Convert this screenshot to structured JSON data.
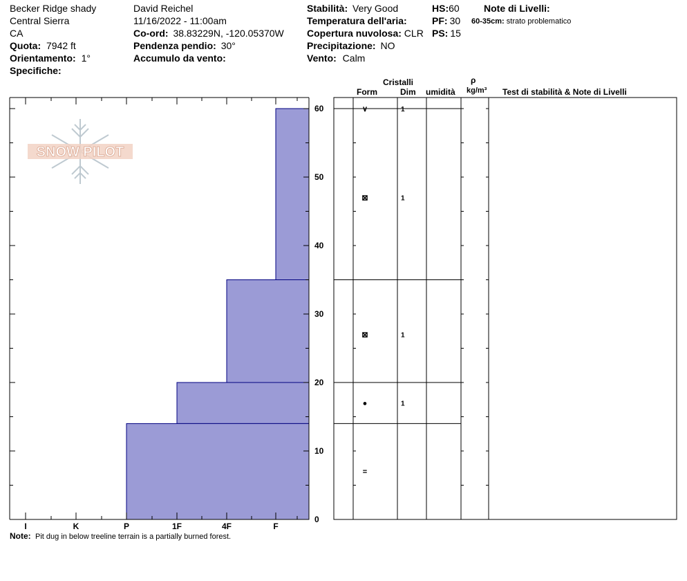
{
  "header": {
    "location": "Becker Ridge shady",
    "range": "Central Sierra",
    "state": "CA",
    "elevation_label": "Quota:",
    "elevation_value": "7942 ft",
    "aspect_label": "Orientamento:",
    "aspect_value": "1°",
    "specifics_label": "Specifiche:",
    "observer": "David Reichel",
    "datetime": "11/16/2022 - 11:00am",
    "coord_label": "Co-ord:",
    "coord_value": "38.83229N, -120.05370W",
    "slope_label": "Pendenza pendio:",
    "slope_value": "30°",
    "wind_load_label": "Accumulo da vento:",
    "stability_label": "Stabilità:",
    "stability_value": "Very Good",
    "air_temp_label": "Temperatura dell'aria:",
    "cloud_label": "Copertura nuvolosa:",
    "cloud_value": "CLR",
    "precip_label": "Precipitazione:",
    "precip_value": "NO",
    "wind_label": "Vento:",
    "wind_value": "Calm",
    "hs_label": "HS:",
    "hs_value": "60",
    "pf_label": "PF:",
    "pf_value": "30",
    "ps_label": "PS:",
    "ps_value": "15",
    "layer_notes_label": "Note di Livelli:",
    "layer_note_range": "60-35cm:",
    "layer_note_text": "strato problematico"
  },
  "logo_text": "SNOW PILOT",
  "table_headers": {
    "crystals": "Cristalli",
    "form": "Form",
    "size": "Dim",
    "moisture": "umidità",
    "density_symbol": "ρ",
    "density_unit": "kg/m³",
    "tests": "Test di stabilità & Note di Livelli"
  },
  "note_label": "Note:",
  "note_text": "Pit dug in below treeline terrain is a partially burned forest.",
  "chart_data": {
    "type": "bar",
    "orientation": "horizontal-step",
    "title": "",
    "xlabel": "",
    "ylabel": "",
    "x_categories": [
      "I",
      "K",
      "P",
      "1F",
      "4F",
      "F"
    ],
    "y_ticks": [
      0,
      10,
      20,
      30,
      40,
      50,
      60
    ],
    "ylim": [
      0,
      62
    ],
    "layers": [
      {
        "top": 60,
        "bottom": 35,
        "hardness": "F",
        "form": "∨",
        "size": "1"
      },
      {
        "top": 35,
        "bottom": 20,
        "hardness": "4F",
        "form": "⊠",
        "size": "1"
      },
      {
        "top": 20,
        "bottom": 14,
        "hardness": "1F",
        "form": "●",
        "size": "1"
      },
      {
        "top": 14,
        "bottom": 0,
        "hardness": "P",
        "form": "=",
        "size": ""
      }
    ],
    "crystal_rows": [
      {
        "height": 60,
        "form": "∨",
        "size": "1"
      },
      {
        "height": 47,
        "form": "⊠",
        "size": "1"
      },
      {
        "height": 27,
        "form": "⊠",
        "size": "1"
      },
      {
        "height": 17,
        "form": "●",
        "size": "1"
      },
      {
        "height": 7,
        "form": "=",
        "size": ""
      }
    ],
    "layer_boundaries": [
      60,
      35,
      20,
      14
    ],
    "fill_color": "#9b9bd6",
    "stroke_color": "#000080"
  }
}
